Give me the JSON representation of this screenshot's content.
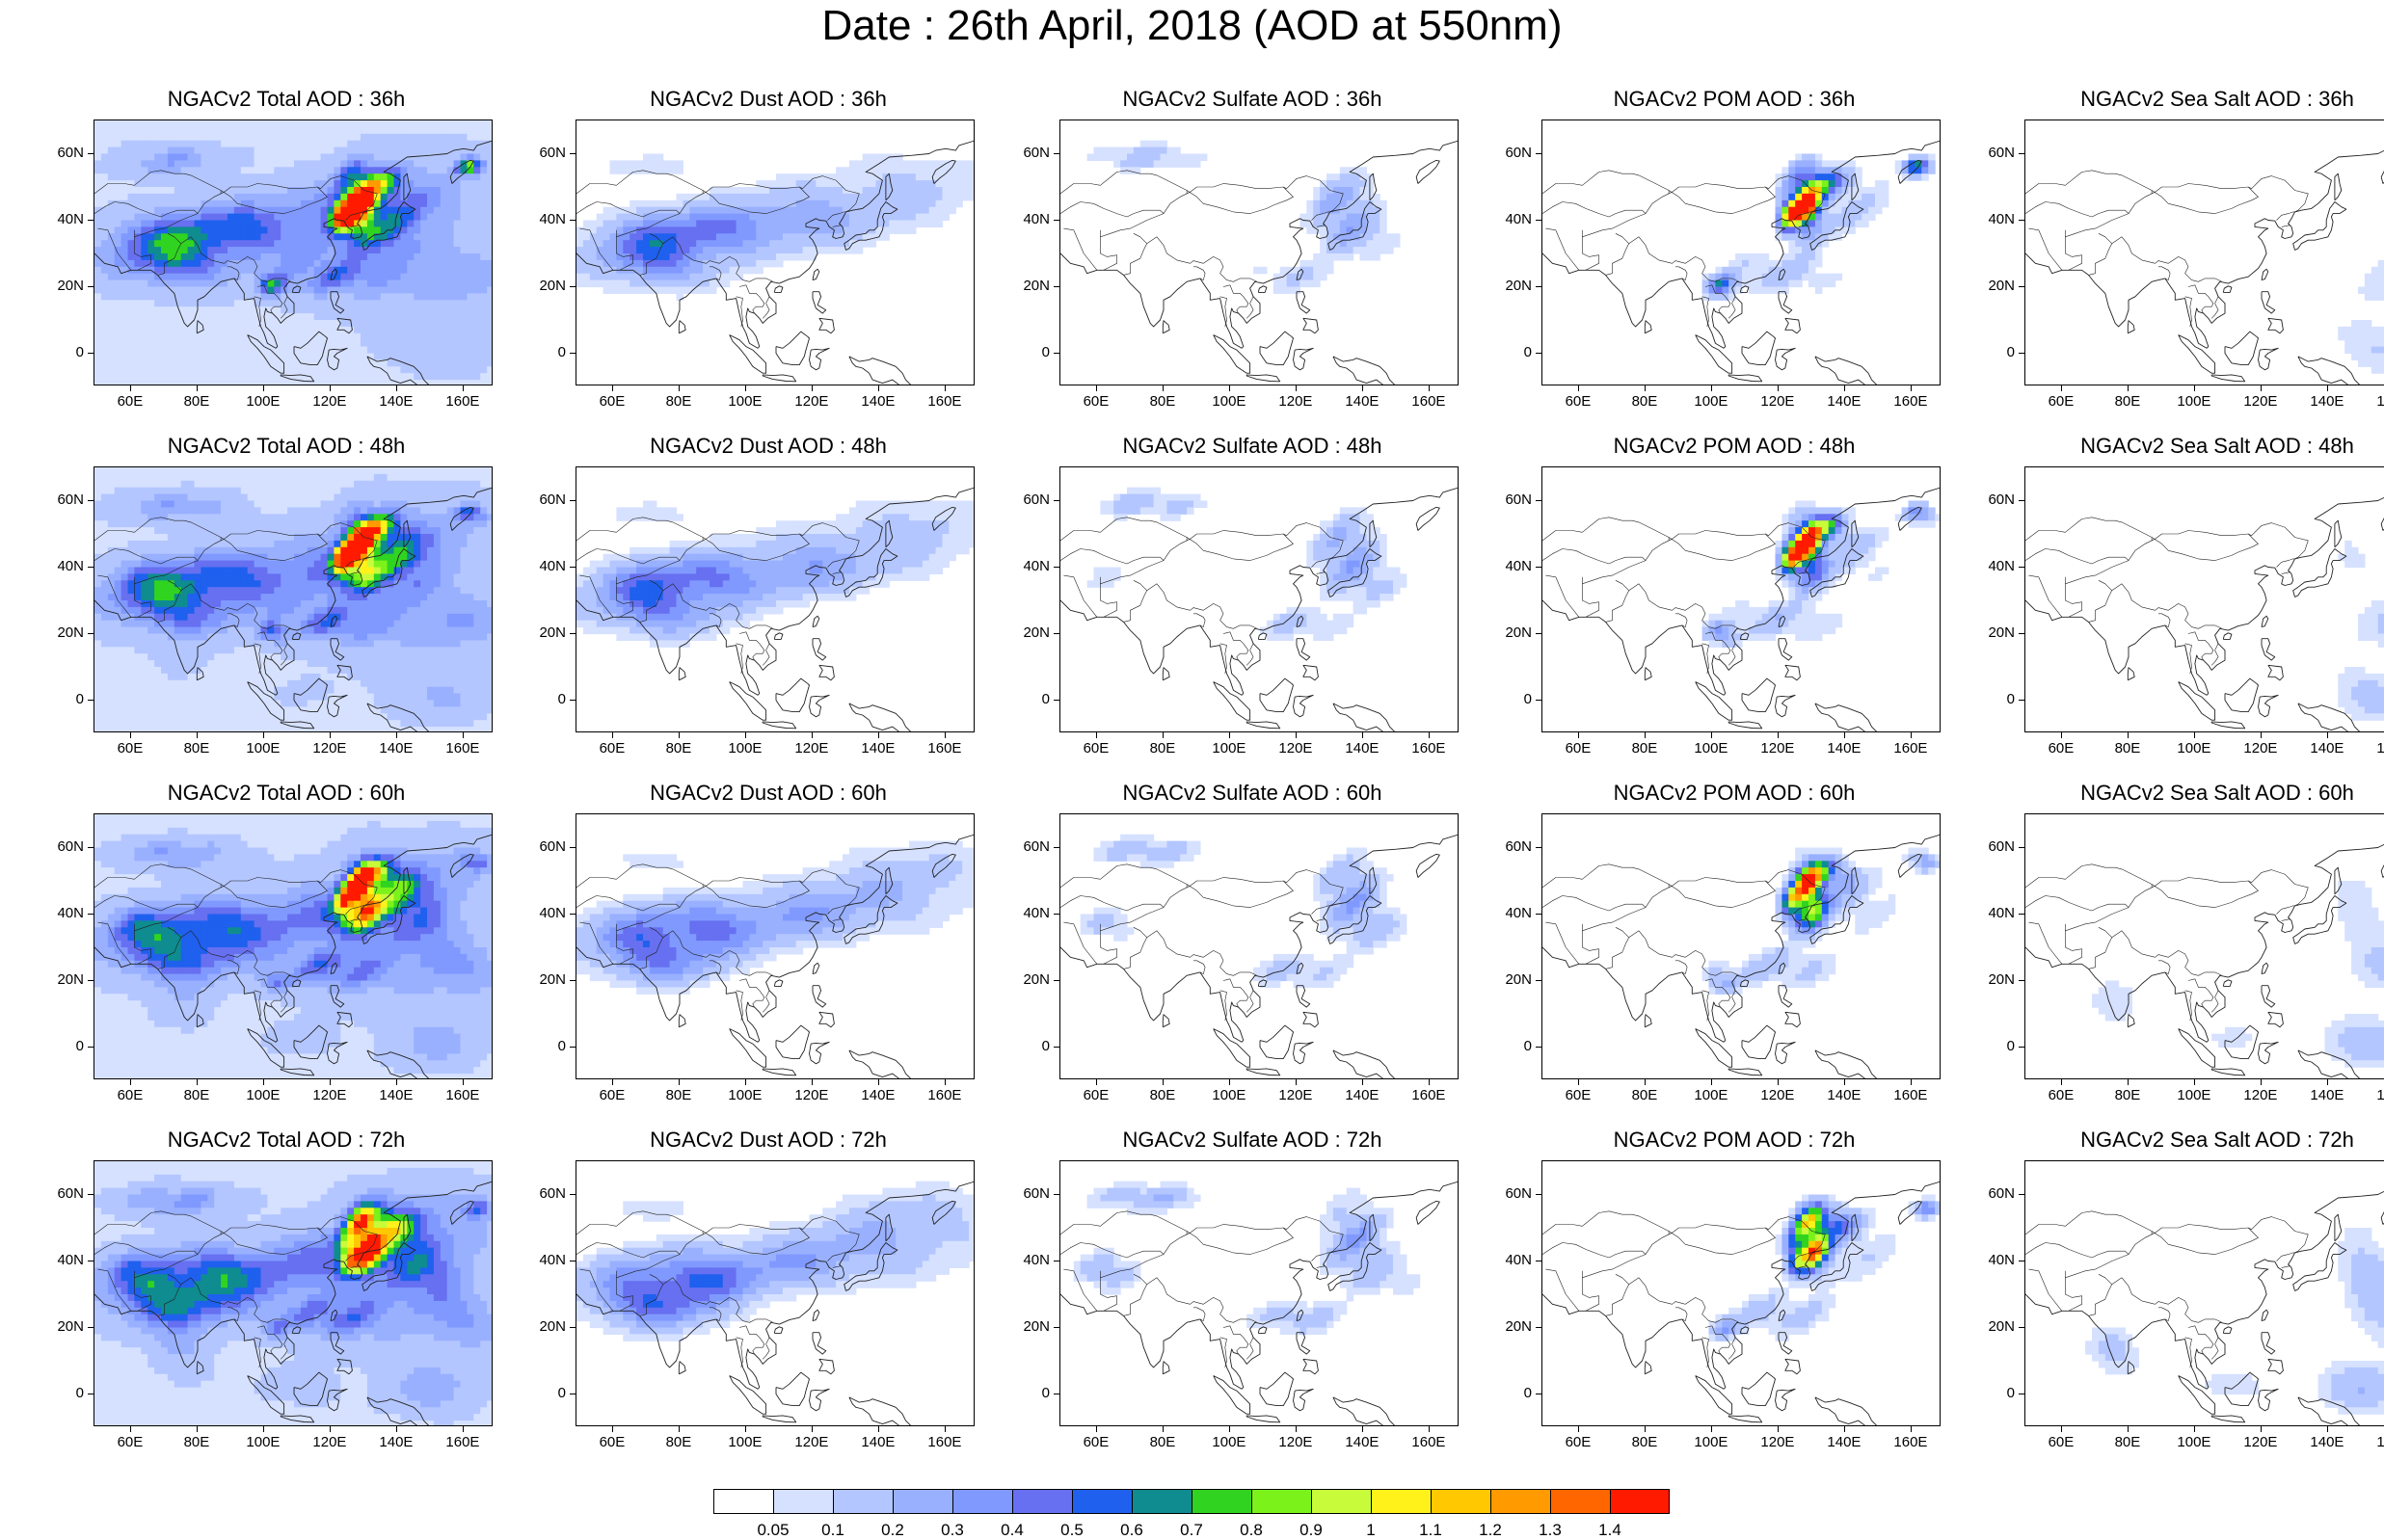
{
  "title": "Date : 26th April, 2018 (AOD at 550nm)",
  "lat_labels": [
    "60N",
    "40N",
    "20N",
    "0"
  ],
  "lat_values": [
    60,
    40,
    20,
    0
  ],
  "lon_labels": [
    "60E",
    "80E",
    "100E",
    "120E",
    "140E",
    "160E"
  ],
  "lon_values": [
    60,
    80,
    100,
    120,
    140,
    160
  ],
  "map_extent": {
    "lon_min": 49,
    "lon_max": 169,
    "lat_min": -10,
    "lat_max": 70
  },
  "columns": [
    "total",
    "dust",
    "sulfate",
    "pom",
    "seasalt"
  ],
  "rows": [
    "36h",
    "48h",
    "60h",
    "72h"
  ],
  "panels": [
    [
      {
        "title": "NGACv2 Total AOD : 36h"
      },
      {
        "title": "NGACv2 Dust AOD : 36h"
      },
      {
        "title": "NGACv2 Sulfate AOD : 36h"
      },
      {
        "title": "NGACv2 POM AOD : 36h"
      },
      {
        "title": "NGACv2 Sea Salt AOD : 36h"
      }
    ],
    [
      {
        "title": "NGACv2 Total AOD : 48h"
      },
      {
        "title": "NGACv2 Dust AOD : 48h"
      },
      {
        "title": "NGACv2 Sulfate AOD : 48h"
      },
      {
        "title": "NGACv2 POM AOD : 48h"
      },
      {
        "title": "NGACv2 Sea Salt AOD : 48h"
      }
    ],
    [
      {
        "title": "NGACv2 Total AOD : 60h"
      },
      {
        "title": "NGACv2 Dust AOD : 60h"
      },
      {
        "title": "NGACv2 Sulfate AOD : 60h"
      },
      {
        "title": "NGACv2 POM AOD : 60h"
      },
      {
        "title": "NGACv2 Sea Salt AOD : 60h"
      }
    ],
    [
      {
        "title": "NGACv2 Total AOD : 72h"
      },
      {
        "title": "NGACv2 Dust AOD : 72h"
      },
      {
        "title": "NGACv2 Sulfate AOD : 72h"
      },
      {
        "title": "NGACv2 POM AOD : 72h"
      },
      {
        "title": "NGACv2 Sea Salt  AOD : 72h"
      }
    ]
  ],
  "colorbar": {
    "labels": [
      "0.05",
      "0.1",
      "0.2",
      "0.3",
      "0.4",
      "0.5",
      "0.6",
      "0.7",
      "0.8",
      "0.9",
      "1",
      "1.1",
      "1.2",
      "1.3",
      "1.4"
    ],
    "colors": [
      "#ffffff",
      "#d6e1ff",
      "#b3c6ff",
      "#99b0ff",
      "#8099ff",
      "#6670f0",
      "#1f60ee",
      "#0e8c90",
      "#30d420",
      "#7cf21b",
      "#c8fb3a",
      "#fff21a",
      "#ffc800",
      "#ff9a00",
      "#ff6600",
      "#ff1a00"
    ]
  }
}
